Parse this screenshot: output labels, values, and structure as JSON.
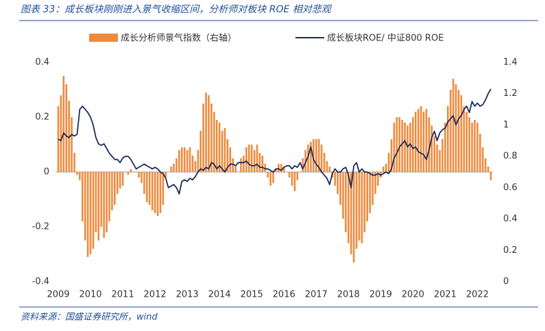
{
  "chart_data": {
    "type": "combo",
    "title": "图表 33：成长板块刚刚进入景气收缩区间，分析师对板块 ROE 相对悲观",
    "source": "资料来源：国盛证券研究所，wind",
    "categories": [
      "2009",
      null,
      null,
      null,
      null,
      null,
      null,
      null,
      null,
      null,
      null,
      null,
      "2010",
      null,
      null,
      null,
      null,
      null,
      null,
      null,
      null,
      null,
      null,
      null,
      "2011",
      null,
      null,
      null,
      null,
      null,
      null,
      null,
      null,
      null,
      null,
      null,
      "2012",
      null,
      null,
      null,
      null,
      null,
      null,
      null,
      null,
      null,
      null,
      null,
      "2013",
      null,
      null,
      null,
      null,
      null,
      null,
      null,
      null,
      null,
      null,
      null,
      "2014",
      null,
      null,
      null,
      null,
      null,
      null,
      null,
      null,
      null,
      null,
      null,
      "2015",
      null,
      null,
      null,
      null,
      null,
      null,
      null,
      null,
      null,
      null,
      null,
      "2016",
      null,
      null,
      null,
      null,
      null,
      null,
      null,
      null,
      null,
      null,
      null,
      "2017",
      null,
      null,
      null,
      null,
      null,
      null,
      null,
      null,
      null,
      null,
      null,
      "2018",
      null,
      null,
      null,
      null,
      null,
      null,
      null,
      null,
      null,
      null,
      null,
      "2019",
      null,
      null,
      null,
      null,
      null,
      null,
      null,
      null,
      null,
      null,
      null,
      "2020",
      null,
      null,
      null,
      null,
      null,
      null,
      null,
      null,
      null,
      null,
      null,
      "2021",
      null,
      null,
      null,
      null,
      null,
      null,
      null,
      null,
      null,
      null,
      null,
      "2022",
      null,
      null,
      null,
      null,
      null
    ],
    "series": [
      {
        "name": "成长分析师景气指数（右轴）",
        "type": "bar",
        "axis": "y",
        "color": "#ee8a3c",
        "values": [
          0.24,
          0.28,
          0.35,
          0.32,
          0.26,
          0.2,
          0.07,
          -0.01,
          -0.03,
          -0.18,
          -0.25,
          -0.31,
          -0.3,
          -0.28,
          -0.22,
          -0.25,
          -0.2,
          -0.24,
          -0.22,
          -0.18,
          -0.14,
          -0.12,
          -0.08,
          -0.06,
          -0.05,
          0.0,
          -0.01,
          0.01,
          0.0,
          0.0,
          -0.02,
          -0.04,
          -0.08,
          -0.11,
          -0.12,
          -0.14,
          -0.15,
          -0.16,
          -0.15,
          -0.12,
          -0.02,
          0.0,
          0.02,
          0.03,
          0.05,
          0.08,
          0.09,
          0.09,
          0.08,
          0.09,
          0.06,
          0.04,
          0.08,
          0.15,
          0.25,
          0.29,
          0.28,
          0.25,
          0.22,
          0.19,
          0.18,
          0.15,
          0.16,
          0.12,
          0.09,
          0.05,
          0.02,
          0.0,
          0.05,
          0.06,
          0.09,
          0.1,
          0.1,
          0.08,
          0.1,
          0.07,
          0.06,
          0.03,
          -0.02,
          -0.05,
          -0.04,
          0.01,
          0.03,
          0.03,
          0.02,
          0.0,
          -0.02,
          -0.05,
          -0.07,
          -0.03,
          0.0,
          0.05,
          0.08,
          0.1,
          0.11,
          0.12,
          0.12,
          0.12,
          0.1,
          0.07,
          0.04,
          0.02,
          -0.02,
          -0.05,
          -0.08,
          -0.12,
          -0.17,
          -0.22,
          -0.26,
          -0.3,
          -0.33,
          -0.28,
          -0.25,
          -0.26,
          -0.22,
          -0.18,
          -0.15,
          -0.12,
          -0.08,
          -0.05,
          -0.02,
          0.02,
          0.03,
          0.07,
          0.12,
          0.18,
          0.2,
          0.2,
          0.19,
          0.18,
          0.17,
          0.18,
          0.2,
          0.22,
          0.23,
          0.24,
          0.22,
          0.23,
          0.2,
          0.17,
          0.13,
          0.1,
          0.08,
          0.12,
          0.18,
          0.24,
          0.3,
          0.34,
          0.32,
          0.3,
          0.28,
          0.24,
          0.22,
          0.2,
          0.18,
          0.19,
          0.18,
          0.14,
          0.09,
          0.05,
          0.02,
          -0.03
        ]
      },
      {
        "name": "成长板块ROE/ 中证800 ROE",
        "type": "line",
        "axis": "y2",
        "color": "#1b2a5c",
        "values": [
          0.91,
          0.9,
          0.95,
          0.93,
          0.92,
          0.94,
          0.93,
          0.94,
          1.1,
          1.12,
          1.1,
          1.08,
          1.05,
          1.0,
          0.92,
          0.88,
          0.87,
          0.88,
          0.85,
          0.82,
          0.8,
          0.78,
          0.78,
          0.76,
          0.79,
          0.8,
          0.8,
          0.78,
          0.75,
          0.72,
          0.73,
          0.74,
          0.75,
          0.74,
          0.73,
          0.72,
          0.73,
          0.72,
          0.7,
          0.69,
          0.66,
          0.6,
          0.61,
          0.62,
          0.6,
          0.56,
          0.64,
          0.65,
          0.64,
          0.66,
          0.65,
          0.67,
          0.7,
          0.72,
          0.71,
          0.73,
          0.72,
          0.76,
          0.75,
          0.72,
          0.74,
          0.72,
          0.7,
          0.73,
          0.75,
          0.75,
          0.74,
          0.76,
          0.76,
          0.76,
          0.77,
          0.75,
          0.74,
          0.74,
          0.75,
          0.73,
          0.73,
          0.72,
          0.72,
          0.71,
          0.7,
          0.72,
          0.72,
          0.71,
          0.73,
          0.74,
          0.74,
          0.72,
          0.74,
          0.73,
          0.76,
          0.72,
          0.76,
          0.8,
          0.86,
          0.78,
          0.75,
          0.73,
          0.7,
          0.68,
          0.66,
          0.62,
          0.69,
          0.72,
          0.7,
          0.7,
          0.72,
          0.73,
          0.68,
          0.6,
          0.74,
          0.76,
          0.7,
          0.72,
          0.7,
          0.7,
          0.69,
          0.68,
          0.68,
          0.69,
          0.68,
          0.69,
          0.7,
          0.69,
          0.72,
          0.79,
          0.82,
          0.86,
          0.88,
          0.9,
          0.86,
          0.88,
          0.85,
          0.86,
          0.83,
          0.82,
          0.81,
          0.78,
          0.84,
          0.92,
          0.96,
          0.9,
          0.95,
          0.97,
          0.98,
          1.02,
          1.04,
          1.06,
          1.0,
          1.04,
          1.06,
          1.1,
          1.12,
          1.08,
          1.15,
          1.12,
          1.14,
          1.12,
          1.13,
          1.16,
          1.2,
          1.23
        ]
      }
    ],
    "ylim": [
      -0.4,
      0.4
    ],
    "yticks": [
      0.4,
      0.2,
      0,
      -0.2,
      -0.4
    ],
    "y2lim": [
      0,
      1.4
    ],
    "y2ticks": [
      1.4,
      1.2,
      1,
      0.8,
      0.6,
      0.4,
      0.2,
      0
    ],
    "grid": false
  }
}
